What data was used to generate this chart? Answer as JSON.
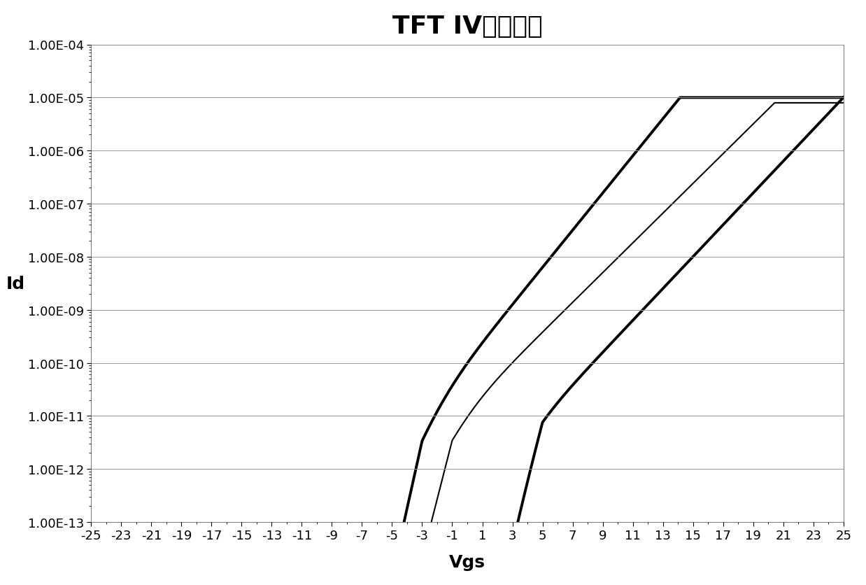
{
  "title": "TFT IV特性曲线",
  "xlabel": "Vgs",
  "ylabel": "Id",
  "xlim": [
    -25,
    25
  ],
  "ylim_log": [
    -13,
    -4
  ],
  "xticks": [
    -25,
    -23,
    -21,
    -19,
    -17,
    -15,
    -13,
    -11,
    -9,
    -7,
    -5,
    -3,
    -1,
    1,
    3,
    5,
    7,
    9,
    11,
    13,
    15,
    17,
    19,
    21,
    23,
    25
  ],
  "ytick_labels": [
    "1.00E-13",
    "1.00E-12",
    "1.00E-11",
    "1.00E-10",
    "1.00E-09",
    "1.00E-08",
    "1.00E-07",
    "1.00E-06",
    "1.00E-05",
    "1.00E-04"
  ],
  "background_color": "#ffffff",
  "line_color": "#000000",
  "title_fontsize": 26,
  "axis_label_fontsize": 18,
  "tick_fontsize": 13,
  "linewidth_thick": 2.8,
  "linewidth_thin": 1.5
}
